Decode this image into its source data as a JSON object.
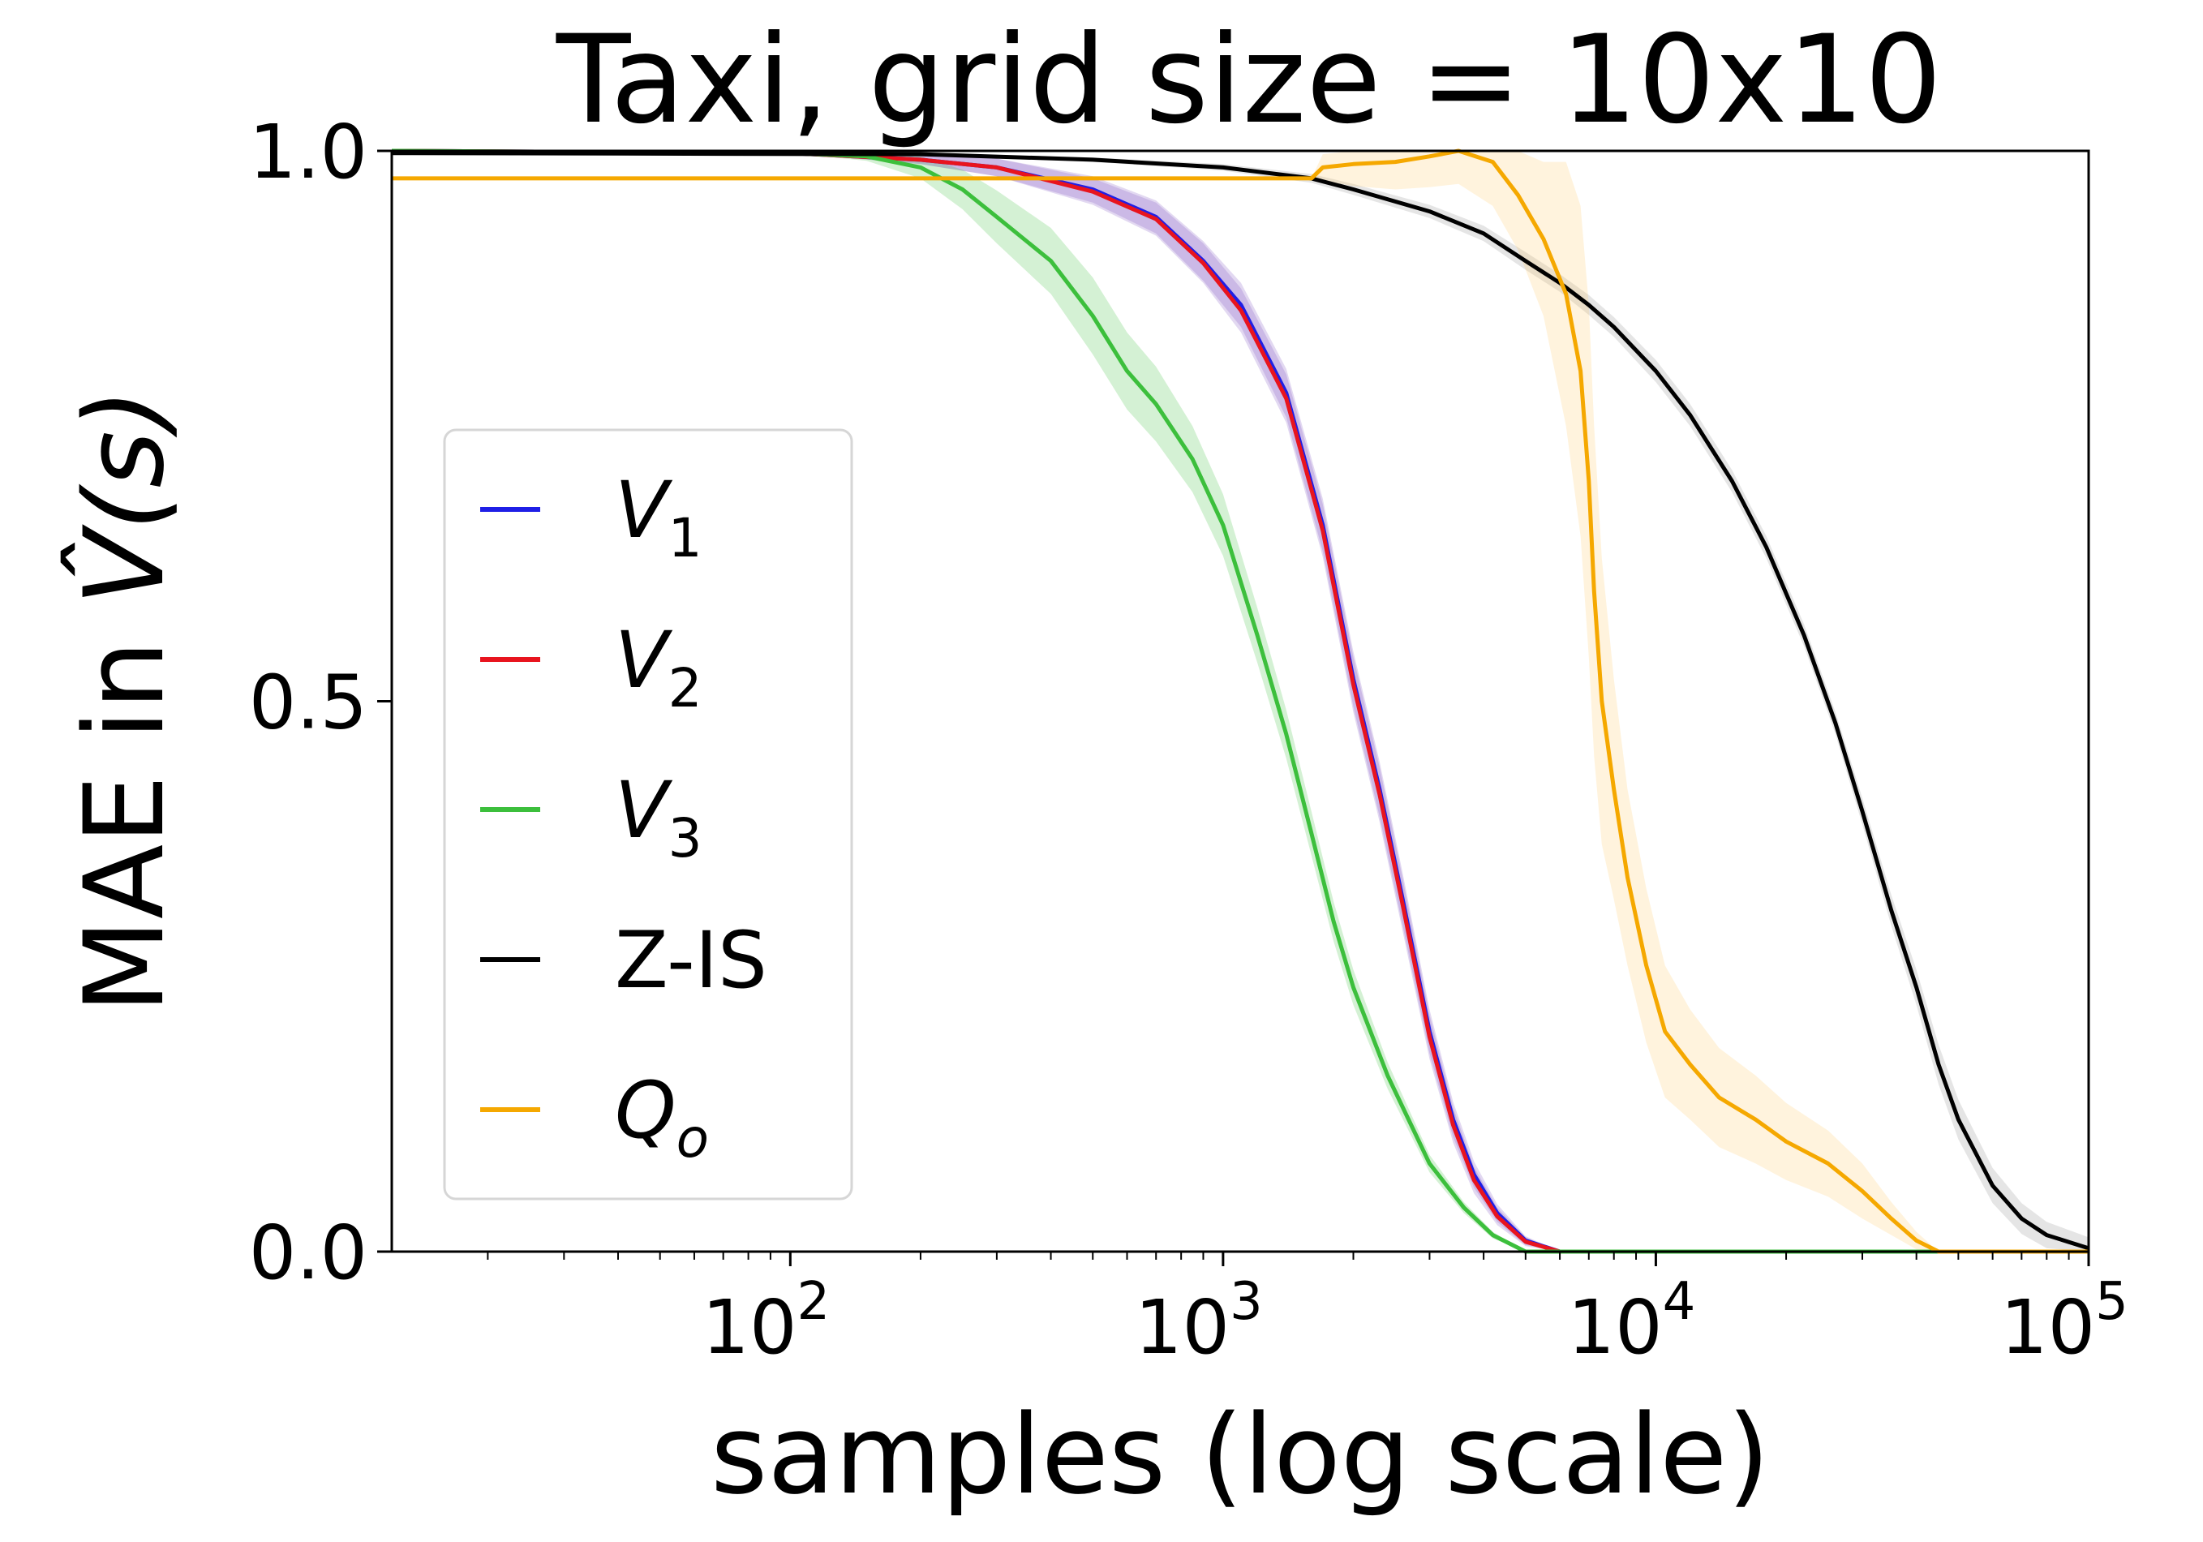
{
  "chart_data": {
    "type": "line",
    "title": "Taxi, grid size = 10x10",
    "xlabel": "samples (log scale)",
    "ylabel": {
      "text": "MAE in V̂(s)",
      "prefix": "MAE in ",
      "math": "V̂(s)"
    },
    "x_scale": "log",
    "xlim": [
      12,
      100000
    ],
    "ylim": [
      0.0,
      1.0
    ],
    "x_ticks": [
      {
        "value": 100,
        "base": "10",
        "exp": "2"
      },
      {
        "value": 1000,
        "base": "10",
        "exp": "3"
      },
      {
        "value": 10000,
        "base": "10",
        "exp": "4"
      },
      {
        "value": 100000,
        "base": "10",
        "exp": "5"
      }
    ],
    "y_ticks": [
      {
        "value": 0.0,
        "label": "0.0"
      },
      {
        "value": 0.5,
        "label": "0.5"
      },
      {
        "value": 1.0,
        "label": "1.0"
      }
    ],
    "grid": false,
    "legend_position": "center-left",
    "series": [
      {
        "name": "V1",
        "label_base": "V",
        "label_sub": "1",
        "label_italic": true,
        "color": "#1f1fe6",
        "band_color": "#7a4fbf",
        "points": [
          [
            12,
            1.0
          ],
          [
            100,
            0.998
          ],
          [
            200,
            0.992
          ],
          [
            300,
            0.985
          ],
          [
            500,
            0.965
          ],
          [
            700,
            0.94
          ],
          [
            900,
            0.9
          ],
          [
            1100,
            0.86
          ],
          [
            1400,
            0.78
          ],
          [
            1700,
            0.66
          ],
          [
            2000,
            0.52
          ],
          [
            2300,
            0.42
          ],
          [
            2600,
            0.32
          ],
          [
            3000,
            0.2
          ],
          [
            3400,
            0.12
          ],
          [
            3800,
            0.07
          ],
          [
            4300,
            0.035
          ],
          [
            5000,
            0.01
          ],
          [
            6000,
            0.0
          ],
          [
            100000,
            0.0
          ]
        ],
        "band": [
          0.0,
          0.0,
          0.004,
          0.008,
          0.012,
          0.015,
          0.018,
          0.02,
          0.022,
          0.024,
          0.025,
          0.025,
          0.024,
          0.02,
          0.016,
          0.012,
          0.008,
          0.004,
          0.0,
          0.0
        ]
      },
      {
        "name": "V2",
        "label_base": "V",
        "label_sub": "2",
        "label_italic": true,
        "color": "#e8141e",
        "band_color": "#7a4fbf",
        "points": [
          [
            12,
            1.0
          ],
          [
            100,
            0.998
          ],
          [
            200,
            0.992
          ],
          [
            300,
            0.985
          ],
          [
            500,
            0.963
          ],
          [
            700,
            0.938
          ],
          [
            900,
            0.898
          ],
          [
            1100,
            0.855
          ],
          [
            1400,
            0.775
          ],
          [
            1700,
            0.655
          ],
          [
            2000,
            0.515
          ],
          [
            2300,
            0.415
          ],
          [
            2600,
            0.315
          ],
          [
            3000,
            0.195
          ],
          [
            3400,
            0.115
          ],
          [
            3800,
            0.065
          ],
          [
            4300,
            0.032
          ],
          [
            5000,
            0.009
          ],
          [
            6000,
            0.0
          ],
          [
            100000,
            0.0
          ]
        ],
        "band": [
          0.0,
          0.0,
          0.004,
          0.008,
          0.012,
          0.015,
          0.018,
          0.02,
          0.022,
          0.024,
          0.025,
          0.025,
          0.024,
          0.02,
          0.016,
          0.012,
          0.008,
          0.004,
          0.0,
          0.0
        ]
      },
      {
        "name": "V3",
        "label_base": "V",
        "label_sub": "3",
        "label_italic": true,
        "color": "#3cbf3c",
        "band_color": "#3cbf3c",
        "points": [
          [
            12,
            1.0
          ],
          [
            100,
            0.998
          ],
          [
            150,
            0.995
          ],
          [
            200,
            0.985
          ],
          [
            250,
            0.965
          ],
          [
            300,
            0.94
          ],
          [
            400,
            0.9
          ],
          [
            500,
            0.85
          ],
          [
            600,
            0.8
          ],
          [
            700,
            0.77
          ],
          [
            850,
            0.72
          ],
          [
            1000,
            0.66
          ],
          [
            1200,
            0.56
          ],
          [
            1400,
            0.47
          ],
          [
            1600,
            0.38
          ],
          [
            1800,
            0.3
          ],
          [
            2000,
            0.24
          ],
          [
            2400,
            0.16
          ],
          [
            3000,
            0.08
          ],
          [
            3600,
            0.04
          ],
          [
            4200,
            0.015
          ],
          [
            5000,
            0.0
          ],
          [
            100000,
            0.0
          ]
        ],
        "band": [
          0.0,
          0.0,
          0.004,
          0.01,
          0.018,
          0.024,
          0.03,
          0.035,
          0.035,
          0.034,
          0.03,
          0.028,
          0.025,
          0.022,
          0.02,
          0.018,
          0.016,
          0.012,
          0.008,
          0.005,
          0.003,
          0.0,
          0.0
        ]
      },
      {
        "name": "Z-IS",
        "label_text": "Z-IS",
        "label_italic": false,
        "color": "#000000",
        "band_color": "#8a8a8a",
        "points": [
          [
            12,
            0.998
          ],
          [
            200,
            0.997
          ],
          [
            500,
            0.992
          ],
          [
            1000,
            0.985
          ],
          [
            1600,
            0.975
          ],
          [
            2000,
            0.965
          ],
          [
            3000,
            0.945
          ],
          [
            4000,
            0.925
          ],
          [
            5000,
            0.9
          ],
          [
            6000,
            0.88
          ],
          [
            7000,
            0.86
          ],
          [
            8000,
            0.84
          ],
          [
            10000,
            0.8
          ],
          [
            12000,
            0.76
          ],
          [
            15000,
            0.7
          ],
          [
            18000,
            0.64
          ],
          [
            22000,
            0.56
          ],
          [
            26000,
            0.48
          ],
          [
            30000,
            0.4
          ],
          [
            35000,
            0.31
          ],
          [
            40000,
            0.24
          ],
          [
            45000,
            0.17
          ],
          [
            50000,
            0.12
          ],
          [
            60000,
            0.06
          ],
          [
            70000,
            0.03
          ],
          [
            80000,
            0.015
          ],
          [
            100000,
            0.003
          ]
        ],
        "band": [
          0.0,
          0.0,
          0.002,
          0.003,
          0.004,
          0.005,
          0.006,
          0.007,
          0.008,
          0.008,
          0.009,
          0.009,
          0.01,
          0.01,
          0.01,
          0.01,
          0.01,
          0.01,
          0.012,
          0.014,
          0.016,
          0.018,
          0.018,
          0.016,
          0.014,
          0.012,
          0.01
        ]
      },
      {
        "name": "Qo",
        "label_base": "Q",
        "label_sub": "o",
        "label_italic": true,
        "color": "#f5a800",
        "band_color": "#ffc766",
        "points": [
          [
            12,
            0.975
          ],
          [
            1600,
            0.975
          ],
          [
            1700,
            0.985
          ],
          [
            2000,
            0.988
          ],
          [
            2500,
            0.99
          ],
          [
            3000,
            0.995
          ],
          [
            3500,
            1.0
          ],
          [
            4200,
            0.99
          ],
          [
            4800,
            0.96
          ],
          [
            5500,
            0.92
          ],
          [
            6200,
            0.87
          ],
          [
            6700,
            0.8
          ],
          [
            7000,
            0.7
          ],
          [
            7200,
            0.6
          ],
          [
            7500,
            0.5
          ],
          [
            8000,
            0.42
          ],
          [
            8600,
            0.34
          ],
          [
            9500,
            0.26
          ],
          [
            10500,
            0.2
          ],
          [
            12000,
            0.17
          ],
          [
            14000,
            0.14
          ],
          [
            17000,
            0.12
          ],
          [
            20000,
            0.1
          ],
          [
            25000,
            0.08
          ],
          [
            30000,
            0.055
          ],
          [
            35000,
            0.03
          ],
          [
            40000,
            0.01
          ],
          [
            45000,
            0.0
          ],
          [
            100000,
            0.0
          ]
        ],
        "band": [
          0.0,
          0.0,
          0.012,
          0.02,
          0.025,
          0.028,
          0.03,
          0.04,
          0.05,
          0.07,
          0.12,
          0.15,
          0.16,
          0.15,
          0.13,
          0.1,
          0.08,
          0.07,
          0.06,
          0.05,
          0.045,
          0.04,
          0.035,
          0.03,
          0.025,
          0.015,
          0.008,
          0.0,
          0.0
        ]
      }
    ]
  }
}
